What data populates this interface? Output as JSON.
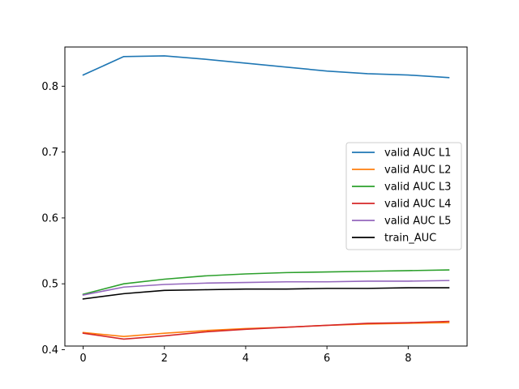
{
  "chart_data": {
    "type": "line",
    "title": "",
    "xlabel": "",
    "ylabel": "",
    "x": [
      0,
      1,
      2,
      3,
      4,
      5,
      6,
      7,
      8,
      9
    ],
    "xlim": [
      -0.45,
      9.45
    ],
    "ylim": [
      0.4055,
      0.8595
    ],
    "xticks": [
      0,
      2,
      4,
      6,
      8
    ],
    "yticks": [
      0.4,
      0.5,
      0.6,
      0.7,
      0.8
    ],
    "grid": false,
    "legend_position": "center-right",
    "series": [
      {
        "name": "valid AUC L1",
        "color": "#1f77b4",
        "values": [
          0.817,
          0.845,
          0.846,
          0.841,
          0.835,
          0.829,
          0.823,
          0.819,
          0.817,
          0.813
        ]
      },
      {
        "name": "valid AUC L2",
        "color": "#ff7f0e",
        "values": [
          0.426,
          0.42,
          0.425,
          0.429,
          0.432,
          0.434,
          0.437,
          0.439,
          0.44,
          0.441
        ]
      },
      {
        "name": "valid AUC L3",
        "color": "#2ca02c",
        "values": [
          0.484,
          0.5,
          0.507,
          0.512,
          0.515,
          0.517,
          0.518,
          0.519,
          0.52,
          0.521
        ]
      },
      {
        "name": "valid AUC L4",
        "color": "#d62728",
        "values": [
          0.425,
          0.416,
          0.421,
          0.427,
          0.431,
          0.434,
          0.437,
          0.44,
          0.441,
          0.443
        ]
      },
      {
        "name": "valid AUC L5",
        "color": "#9467bd",
        "values": [
          0.483,
          0.495,
          0.499,
          0.501,
          0.502,
          0.503,
          0.503,
          0.504,
          0.504,
          0.505
        ]
      },
      {
        "name": "train_AUC",
        "color": "#000000",
        "values": [
          0.477,
          0.485,
          0.49,
          0.491,
          0.492,
          0.492,
          0.493,
          0.493,
          0.494,
          0.494
        ]
      }
    ]
  }
}
